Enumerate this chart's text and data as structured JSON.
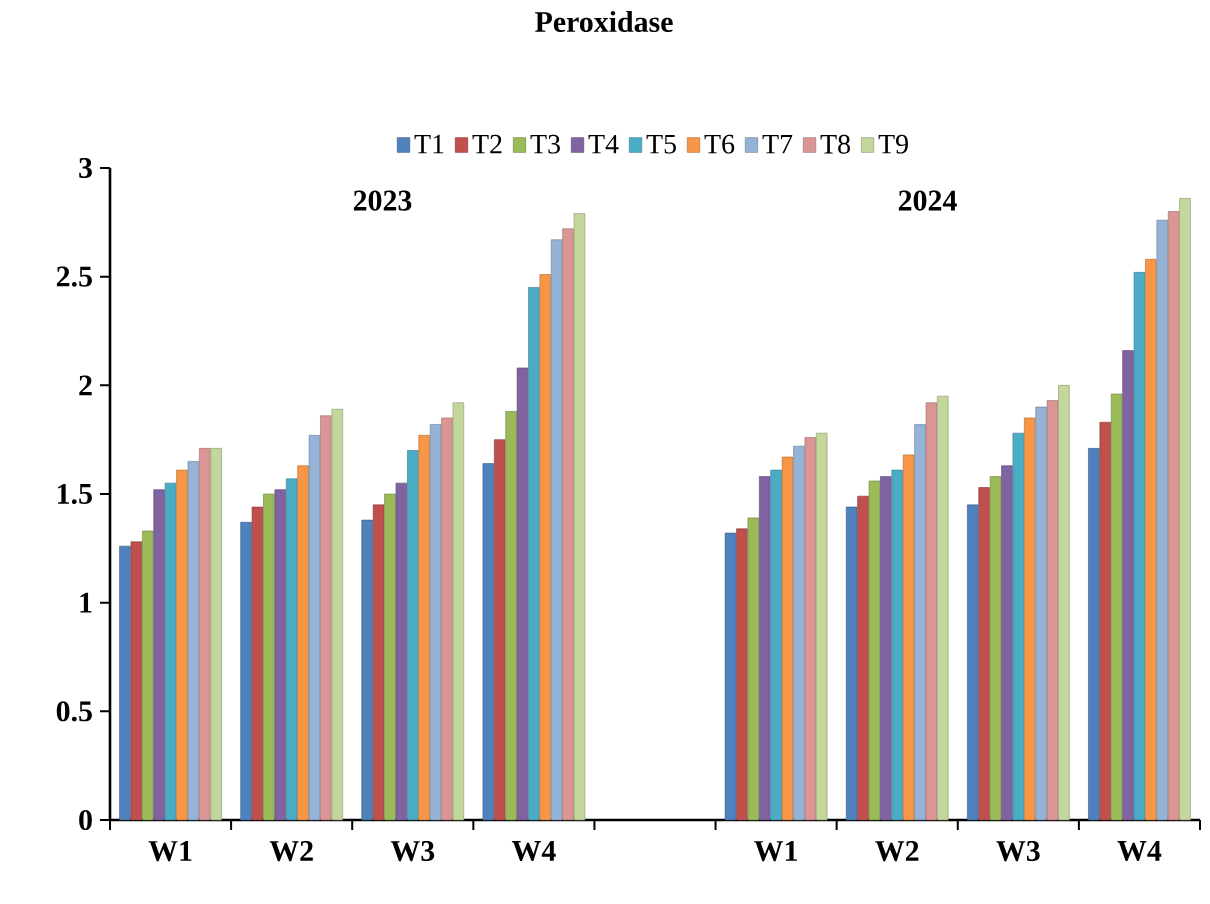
{
  "chart_data": {
    "type": "bar",
    "title": "Peroxidase",
    "annotations": [
      "2023",
      "2024"
    ],
    "categories": [
      "W1",
      "W2",
      "W3",
      "W4",
      null,
      "W1",
      "W2",
      "W3",
      "W4"
    ],
    "series": [
      {
        "name": "T1",
        "color": "#4f81bd",
        "values": [
          1.26,
          1.37,
          1.38,
          1.64,
          null,
          1.32,
          1.44,
          1.45,
          1.71
        ]
      },
      {
        "name": "T2",
        "color": "#c0504d",
        "values": [
          1.28,
          1.44,
          1.45,
          1.75,
          null,
          1.34,
          1.49,
          1.53,
          1.83
        ]
      },
      {
        "name": "T3",
        "color": "#9bbb59",
        "values": [
          1.33,
          1.5,
          1.5,
          1.88,
          null,
          1.39,
          1.56,
          1.58,
          1.96
        ]
      },
      {
        "name": "T4",
        "color": "#8064a2",
        "values": [
          1.52,
          1.52,
          1.55,
          2.08,
          null,
          1.58,
          1.58,
          1.63,
          2.16
        ]
      },
      {
        "name": "T5",
        "color": "#4bacc6",
        "values": [
          1.55,
          1.57,
          1.7,
          2.45,
          null,
          1.61,
          1.61,
          1.78,
          2.52
        ]
      },
      {
        "name": "T6",
        "color": "#f79646",
        "values": [
          1.61,
          1.63,
          1.77,
          2.51,
          null,
          1.67,
          1.68,
          1.85,
          2.58
        ]
      },
      {
        "name": "T7",
        "color": "#95b3d7",
        "values": [
          1.65,
          1.77,
          1.82,
          2.67,
          null,
          1.72,
          1.82,
          1.9,
          2.76
        ]
      },
      {
        "name": "T8",
        "color": "#d99694",
        "values": [
          1.71,
          1.86,
          1.85,
          2.72,
          null,
          1.76,
          1.92,
          1.93,
          2.8
        ]
      },
      {
        "name": "T9",
        "color": "#c3d69b",
        "values": [
          1.71,
          1.89,
          1.92,
          2.79,
          null,
          1.78,
          1.95,
          2.0,
          2.86
        ]
      }
    ],
    "ylim": [
      0,
      3
    ],
    "yticks": [
      0,
      0.5,
      1,
      1.5,
      2,
      2.5,
      3
    ],
    "grid": false,
    "legend": "top"
  }
}
